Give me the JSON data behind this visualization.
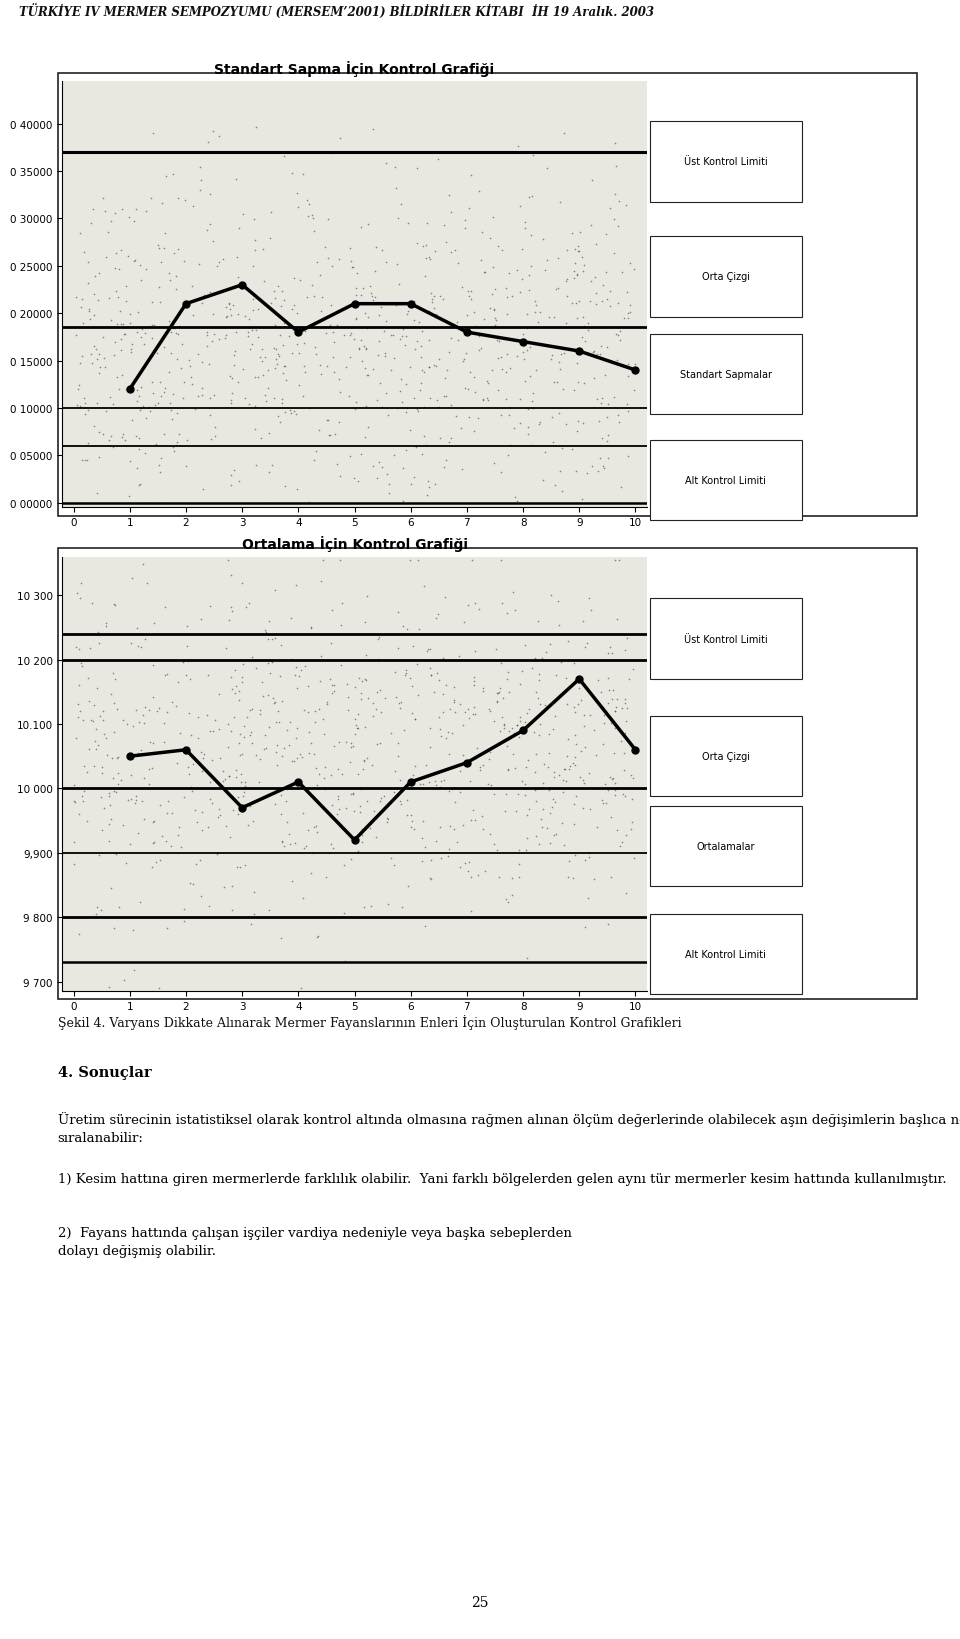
{
  "header": "TÜRKİYE IV MERMER SEMPOZYUMU (MERSEM’2001) BİLDİRİLER KİTABI  İH 19 Aralık. 2003",
  "chart1_title": "Standart Sapma İçin Kontrol Grafiği",
  "chart1_ucl": 0.37,
  "chart1_cl": 0.185,
  "chart1_lcl": 0.0,
  "chart1_line_a": 0.1,
  "chart1_line_b": 0.06,
  "chart1_ylim": [
    -0.005,
    0.445
  ],
  "chart1_yticks": [
    0.0,
    0.05,
    0.1,
    0.15,
    0.2,
    0.25,
    0.3,
    0.35,
    0.4
  ],
  "chart1_ytick_labels": [
    "0 00000",
    "0 05000",
    "0 10000",
    "0 15000",
    "0 20000",
    "0 25000",
    "0 30000",
    "0 35000",
    "0 40000"
  ],
  "chart1_mean_x": [
    1,
    2,
    3,
    4,
    5,
    6,
    7,
    8,
    9,
    10
  ],
  "chart1_mean_y": [
    0.12,
    0.21,
    0.23,
    0.18,
    0.21,
    0.21,
    0.18,
    0.17,
    0.16,
    0.14
  ],
  "chart1_legend": [
    "Üst Kontrol Limiti",
    "Orta Çizgi",
    "Standart Sapmalar",
    "Alt Kontrol Limiti"
  ],
  "chart2_title": "Ortalama İçin Kontrol Grafiği",
  "chart2_ucl": 10240,
  "chart2_ucl2": 10200,
  "chart2_cl": 10000,
  "chart2_lcl2": 9900,
  "chart2_lcl": 9800,
  "chart2_lcl3": 9730,
  "chart2_ylim": [
    9685,
    10360
  ],
  "chart2_yticks": [
    9700,
    9800,
    9900,
    10000,
    10100,
    10200,
    10300
  ],
  "chart2_ytick_labels": [
    "9 700",
    "9 800",
    "9,900",
    "10 000",
    "10.100",
    "10 200",
    "10 300"
  ],
  "chart2_mean_x": [
    1,
    2,
    3,
    4,
    5,
    6,
    7,
    8,
    9,
    10
  ],
  "chart2_mean_y": [
    10050,
    10060,
    9970,
    10010,
    9920,
    10010,
    10040,
    10090,
    10170,
    10060
  ],
  "chart2_legend": [
    "Üst Kontrol Limiti",
    "Orta Çizgi",
    "Ortalamalar",
    "Alt Kontrol Limiti"
  ],
  "xticks": [
    0,
    1,
    2,
    3,
    4,
    5,
    6,
    7,
    8,
    9,
    10
  ],
  "section_title": "Şekil 4. Varyans Dikkate Alınarak Mermer Fayanslarının Enleri İçin Oluşturulan Kontrol Grafikleri",
  "sonuclar_title": "4. Sonuçlar",
  "body_text_1": "Üretim sürecinin istatistiksel olarak kontrol altında olmasına rağmen alınan ölçüm değerlerinde olabilecek aşın değişimlerin başlıca nedenleri şu şekilde\nsıralanabilir:",
  "body_text_2": "1) Kesim hattına giren mermerlerde farklılık olabilir.  Yani farklı bölgelerden gelen aynı tür mermerler kesim hattında kullanılmıştır.",
  "body_text_3": "2)  Fayans hattında çalışan işçiler vardiya nedeniyle veya başka sebeplerden\ndolayı değişmiş olabilir.",
  "page_number": "25",
  "bg_color": "#ffffff",
  "chart_bg": "#e8e8e0",
  "border_color": "#333333"
}
